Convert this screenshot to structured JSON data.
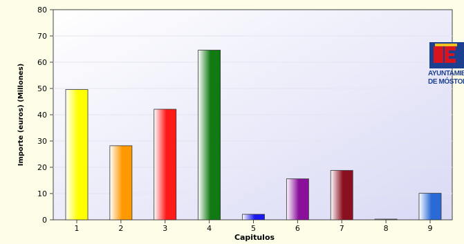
{
  "chart_data": {
    "type": "bar",
    "xlabel": "Capitulos",
    "ylabel": "Importe (euros) (Millones)",
    "categories": [
      "1",
      "2",
      "3",
      "4",
      "5",
      "6",
      "7",
      "8",
      "9"
    ],
    "values": [
      49.6,
      28.2,
      42.1,
      64.6,
      2.1,
      15.6,
      18.8,
      0.2,
      10.1
    ],
    "ylim": [
      0,
      80
    ],
    "yticks": [
      0,
      10,
      20,
      30,
      40,
      50,
      60,
      70,
      80
    ],
    "grid": "horizontal",
    "bar_colors": [
      "#ffff00",
      "#ff9900",
      "#ff1a1a",
      "#127a12",
      "#1a1aee",
      "#8a109a",
      "#8a1020",
      "#80a080",
      "#2a6ad6"
    ]
  },
  "logo": {
    "line1": "AYUNTAMIENTO",
    "line2": "DE MÓSTOLES",
    "primary_color": "#1d3f8f",
    "accent_color": "#d8141e"
  }
}
